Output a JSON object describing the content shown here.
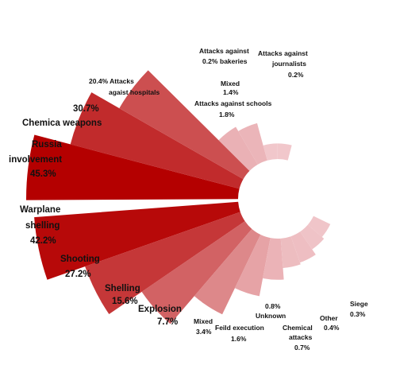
{
  "chart_data": {
    "type": "radial-bar",
    "title": "",
    "max_value": 45.3,
    "colors": {
      "high": "#b40000",
      "low": "#f3cfd3"
    },
    "upper_group": [
      {
        "label": "Russia involvement",
        "value": 45.3,
        "value_label": "45.3%"
      },
      {
        "label": "Chemica weapons",
        "value": 30.7,
        "value_label": "30.7%"
      },
      {
        "label": "Attacks against hospitals",
        "value": 20.4,
        "value_label": "20.4%"
      },
      {
        "label": "Attacks against schools",
        "value": 1.8,
        "value_label": "1.8%"
      },
      {
        "label": "Mixed",
        "value": 1.4,
        "value_label": "1.4%"
      },
      {
        "label": "Attacks against bakeries",
        "value": 0.2,
        "value_label": "0.2%"
      },
      {
        "label": "Attacks against journalists",
        "value": 0.2,
        "value_label": "0.2%"
      }
    ],
    "lower_group": [
      {
        "label": "Warplane shelling",
        "value": 42.2,
        "value_label": "42.2%"
      },
      {
        "label": "Shooting",
        "value": 27.2,
        "value_label": "27.2%"
      },
      {
        "label": "Shelling",
        "value": 15.6,
        "value_label": "15.6%"
      },
      {
        "label": "Explosion",
        "value": 7.7,
        "value_label": "7.7%"
      },
      {
        "label": "Mixed",
        "value": 3.4,
        "value_label": "3.4%"
      },
      {
        "label": "Feild execution",
        "value": 1.6,
        "value_label": "1.6%"
      },
      {
        "label": "Unknown",
        "value": 0.8,
        "value_label": "0.8%"
      },
      {
        "label": "Chemical attacks",
        "value": 0.7,
        "value_label": "0.7%"
      },
      {
        "label": "Other",
        "value": 0.4,
        "value_label": "0.4%"
      },
      {
        "label": "Siege",
        "value": 0.3,
        "value_label": "0.3%"
      }
    ]
  },
  "labels": {
    "russia_1": "Russia",
    "russia_2": "involvement",
    "russia_val": "45.3%",
    "chem_val": "30.7%",
    "chem_name": "Chemica weapons",
    "hosp_line1": "20.4%  Attacks",
    "hosp_line2": "agaist hospitals",
    "bak_1": "Attacks against",
    "bak_2": "bakeries",
    "bak_val": "0.2%",
    "jour_1": "Attacks against",
    "jour_2": "journalists",
    "jour_val": "0.2%",
    "mixed_up": "Mixed",
    "mixed_up_val": "1.4%",
    "school": "Attacks against schools",
    "school_val": "1.8%",
    "war_1": "Warplane",
    "war_2": "shelling",
    "war_val": "42.2%",
    "shoot": "Shooting",
    "shoot_val": "27.2%",
    "shell": "Shelling",
    "shell_val": "15.6%",
    "expl": "Explosion",
    "expl_val": "7.7%",
    "mixed_low": "Mixed",
    "mixed_low_val": "3.4%",
    "feild": "Feild execution",
    "feild_val": "1.6%",
    "unk_val": "0.8%",
    "unk": "Unknown",
    "chematt_1": "Chemical",
    "chematt_2": "attacks",
    "chematt_val": "0.7%",
    "other": "Other",
    "other_val": "0.4%",
    "siege": "Siege",
    "siege_val": "0.3%"
  }
}
